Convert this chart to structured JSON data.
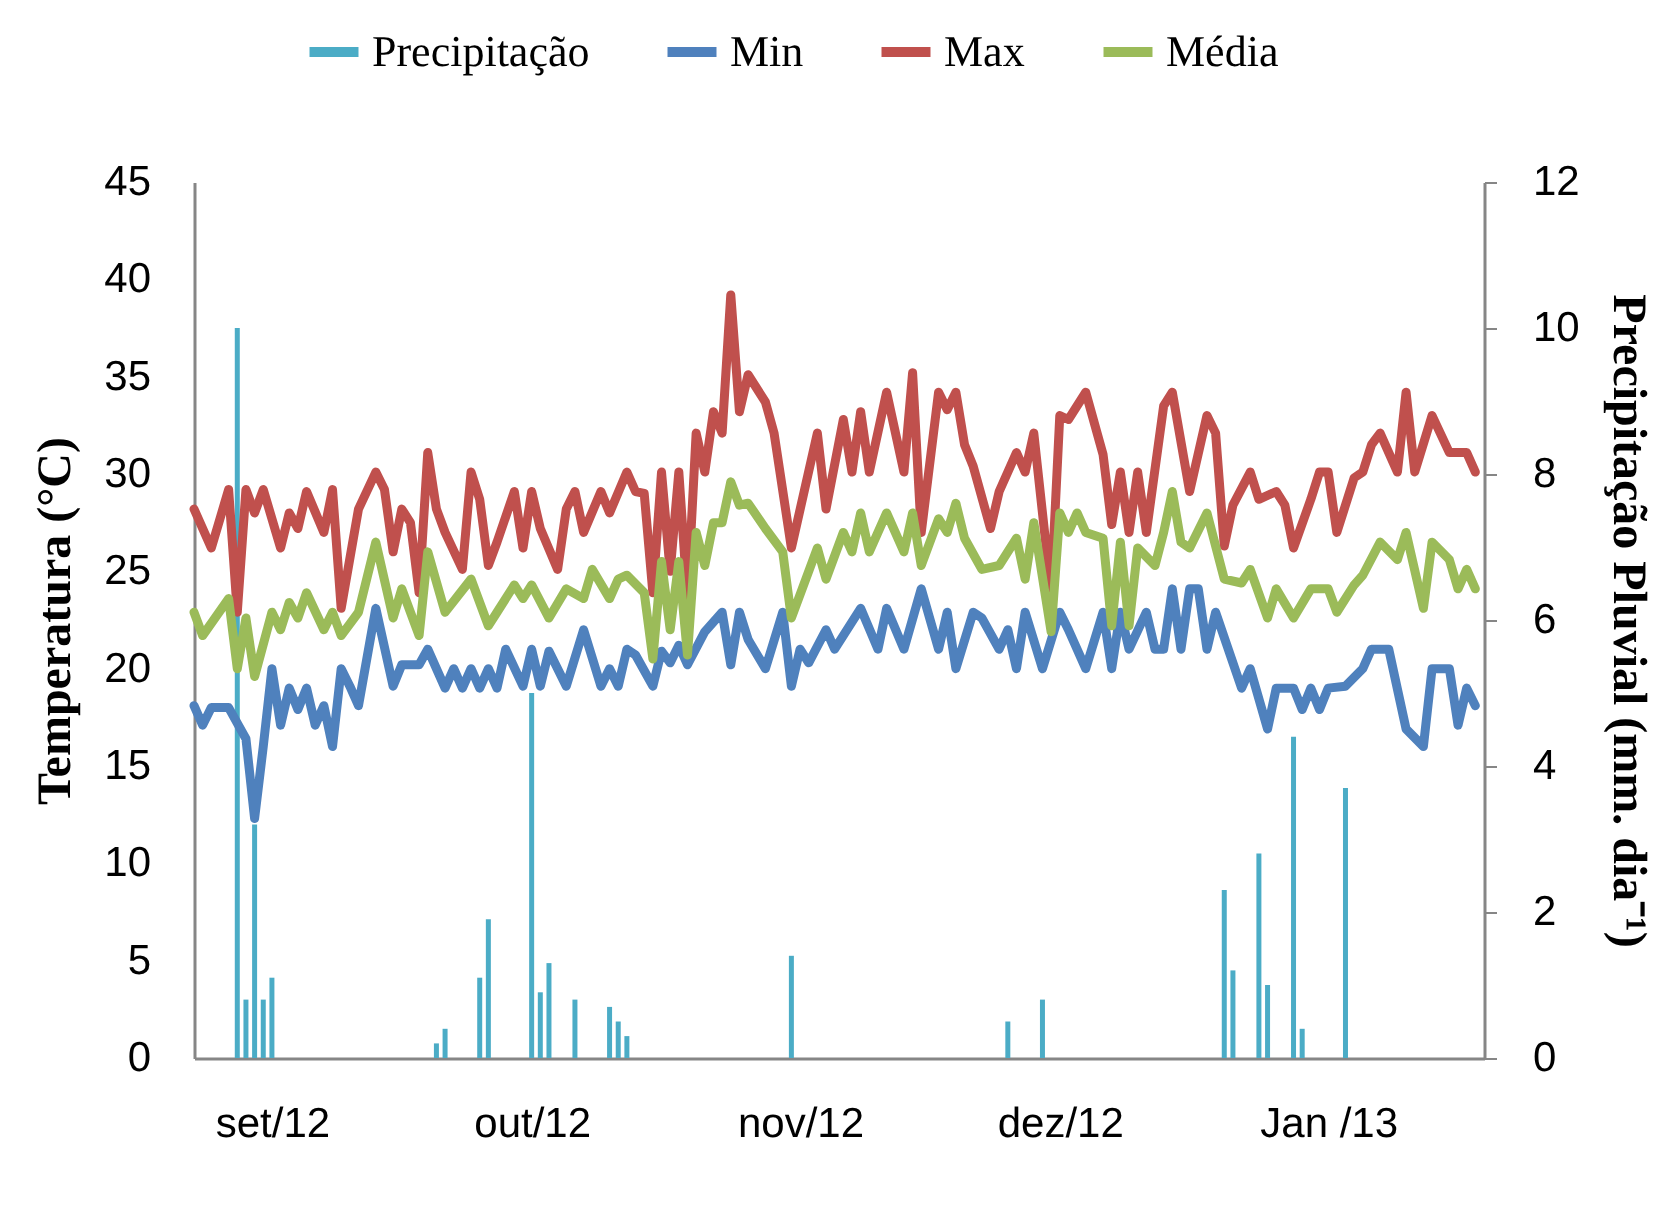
{
  "chart_data": {
    "type": "line",
    "ylabel": "Temperatura (°C)",
    "y2label": "Precipitação Pluvial (mm. dia⁻¹)",
    "legend": "top",
    "xlim": [
      "2012-08-23",
      "2013-01-19"
    ],
    "xticks": [
      {
        "value": "2012-09-01",
        "label": "set/12"
      },
      {
        "value": "2012-10-01",
        "label": "out/12"
      },
      {
        "value": "2012-11-01",
        "label": "nov/12"
      },
      {
        "value": "2012-12-01",
        "label": "dez/12"
      },
      {
        "value": "2013-01-01",
        "label": "Jan /13"
      }
    ],
    "ylim": [
      0,
      45
    ],
    "yticks": [
      0,
      5,
      10,
      15,
      20,
      25,
      30,
      35,
      40,
      45
    ],
    "y2lim": [
      0,
      12
    ],
    "y2ticks": [
      0,
      2,
      4,
      6,
      8,
      10,
      12
    ],
    "series": [
      {
        "name": "Precipitação",
        "type": "bar",
        "axis": "y2",
        "color": "#4bacc6",
        "x": [
          "2012-08-28",
          "2012-08-29",
          "2012-08-30",
          "2012-08-31",
          "2012-09-01",
          "2012-09-20",
          "2012-09-21",
          "2012-09-25",
          "2012-09-26",
          "2012-10-01",
          "2012-10-02",
          "2012-10-03",
          "2012-10-06",
          "2012-10-10",
          "2012-10-11",
          "2012-10-12",
          "2012-10-31",
          "2012-11-25",
          "2012-11-29",
          "2012-12-20",
          "2012-12-21",
          "2012-12-24",
          "2012-12-25",
          "2012-12-28",
          "2012-12-29",
          "2013-01-03"
        ],
        "values": [
          10.0,
          0.8,
          3.2,
          0.8,
          1.1,
          0.2,
          0.4,
          1.1,
          1.9,
          5.0,
          0.9,
          1.3,
          0.8,
          0.7,
          0.5,
          0.3,
          1.4,
          0.5,
          0.8,
          2.3,
          1.2,
          2.8,
          1.0,
          4.4,
          0.4,
          3.7
        ]
      },
      {
        "name": "Min",
        "color": "#4f81bd",
        "x": [
          "2012-08-23",
          "2012-08-24",
          "2012-08-25",
          "2012-08-27",
          "2012-08-29",
          "2012-08-30",
          "2012-08-31",
          "2012-09-01",
          "2012-09-02",
          "2012-09-03",
          "2012-09-04",
          "2012-09-05",
          "2012-09-06",
          "2012-09-07",
          "2012-09-08",
          "2012-09-09",
          "2012-09-10",
          "2012-09-11",
          "2012-09-13",
          "2012-09-15",
          "2012-09-16",
          "2012-09-18",
          "2012-09-19",
          "2012-09-21",
          "2012-09-22",
          "2012-09-23",
          "2012-09-24",
          "2012-09-25",
          "2012-09-26",
          "2012-09-27",
          "2012-09-28",
          "2012-09-30",
          "2012-10-01",
          "2012-10-02",
          "2012-10-03",
          "2012-10-05",
          "2012-10-07",
          "2012-10-09",
          "2012-10-10",
          "2012-10-11",
          "2012-10-12",
          "2012-10-13",
          "2012-10-15",
          "2012-10-16",
          "2012-10-17",
          "2012-10-18",
          "2012-10-19",
          "2012-10-21",
          "2012-10-23",
          "2012-10-24",
          "2012-10-25",
          "2012-10-26",
          "2012-10-28",
          "2012-10-30",
          "2012-10-31",
          "2012-11-01",
          "2012-11-02",
          "2012-11-04",
          "2012-11-05",
          "2012-11-08",
          "2012-11-10",
          "2012-11-11",
          "2012-11-13",
          "2012-11-15",
          "2012-11-17",
          "2012-11-18",
          "2012-11-19",
          "2012-11-21",
          "2012-11-22",
          "2012-11-24",
          "2012-11-25",
          "2012-11-26",
          "2012-11-27",
          "2012-11-29",
          "2012-12-01",
          "2012-12-02",
          "2012-12-04",
          "2012-12-06",
          "2012-12-07",
          "2012-12-08",
          "2012-12-09",
          "2012-12-11",
          "2012-12-12",
          "2012-12-13",
          "2012-12-14",
          "2012-12-15",
          "2012-12-16",
          "2012-12-17",
          "2012-12-18",
          "2012-12-19",
          "2012-12-22",
          "2012-12-23",
          "2012-12-25",
          "2012-12-26",
          "2012-12-28",
          "2012-12-29",
          "2012-12-30",
          "2012-12-31",
          "2013-01-01",
          "2013-01-03",
          "2013-01-05",
          "2013-01-06",
          "2013-01-08",
          "2013-01-10",
          "2013-01-12",
          "2013-01-13",
          "2013-01-15",
          "2013-01-16",
          "2013-01-17",
          "2013-01-18"
        ],
        "values": [
          18.1,
          17.1,
          18,
          18,
          16.4,
          12.3,
          16,
          20,
          17.1,
          19,
          17.9,
          19,
          17.1,
          18.1,
          16,
          20,
          19.1,
          18.1,
          23.1,
          19.1,
          20.2,
          20.2,
          21,
          19,
          20,
          19,
          20,
          19,
          20,
          19,
          21,
          19.1,
          21,
          19.1,
          20.9,
          19.1,
          22,
          19.1,
          20,
          19.1,
          21,
          20.7,
          19.1,
          20.9,
          20.3,
          21.2,
          20.2,
          21.9,
          22.9,
          20.2,
          22.9,
          21.5,
          20,
          22.9,
          19.1,
          21,
          20.3,
          22,
          21,
          23.1,
          21,
          23.1,
          21,
          24.1,
          21,
          22.9,
          20,
          22.9,
          22.6,
          21,
          22,
          20,
          22.9,
          20,
          22.9,
          22,
          20,
          22.9,
          20,
          22.9,
          21,
          22.9,
          21,
          21,
          24.1,
          21,
          24.1,
          24.1,
          21,
          22.9,
          19,
          20,
          16.9,
          19,
          19,
          17.9,
          19,
          17.9,
          19,
          19.1,
          20,
          21,
          21,
          16.9,
          16,
          20,
          20,
          17.1,
          19,
          18.1
        ]
      },
      {
        "name": "Max",
        "color": "#c0504d",
        "x": [
          "2012-08-23",
          "2012-08-25",
          "2012-08-27",
          "2012-08-28",
          "2012-08-29",
          "2012-08-30",
          "2012-08-31",
          "2012-09-02",
          "2012-09-03",
          "2012-09-04",
          "2012-09-05",
          "2012-09-07",
          "2012-09-08",
          "2012-09-09",
          "2012-09-11",
          "2012-09-13",
          "2012-09-14",
          "2012-09-15",
          "2012-09-16",
          "2012-09-17",
          "2012-09-18",
          "2012-09-19",
          "2012-09-20",
          "2012-09-21",
          "2012-09-23",
          "2012-09-24",
          "2012-09-25",
          "2012-09-26",
          "2012-09-27",
          "2012-09-29",
          "2012-09-30",
          "2012-10-01",
          "2012-10-02",
          "2012-10-04",
          "2012-10-05",
          "2012-10-06",
          "2012-10-07",
          "2012-10-09",
          "2012-10-10",
          "2012-10-12",
          "2012-10-13",
          "2012-10-14",
          "2012-10-15",
          "2012-10-16",
          "2012-10-17",
          "2012-10-18",
          "2012-10-19",
          "2012-10-20",
          "2012-10-21",
          "2012-10-22",
          "2012-10-23",
          "2012-10-24",
          "2012-10-25",
          "2012-10-26",
          "2012-10-28",
          "2012-10-29",
          "2012-10-31",
          "2012-11-03",
          "2012-11-04",
          "2012-11-06",
          "2012-11-07",
          "2012-11-08",
          "2012-11-09",
          "2012-11-11",
          "2012-11-13",
          "2012-11-14",
          "2012-11-15",
          "2012-11-17",
          "2012-11-18",
          "2012-11-19",
          "2012-11-20",
          "2012-11-21",
          "2012-11-23",
          "2012-11-24",
          "2012-11-26",
          "2012-11-27",
          "2012-11-28",
          "2012-11-30",
          "2012-12-01",
          "2012-12-02",
          "2012-12-04",
          "2012-12-06",
          "2012-12-07",
          "2012-12-08",
          "2012-12-09",
          "2012-12-10",
          "2012-12-11",
          "2012-12-13",
          "2012-12-14",
          "2012-12-16",
          "2012-12-18",
          "2012-12-19",
          "2012-12-20",
          "2012-12-21",
          "2012-12-23",
          "2012-12-24",
          "2012-12-26",
          "2012-12-27",
          "2012-12-28",
          "2012-12-30",
          "2012-12-31",
          "2013-01-01",
          "2013-01-02",
          "2013-01-04",
          "2013-01-05",
          "2013-01-06",
          "2013-01-07",
          "2013-01-09",
          "2013-01-10",
          "2013-01-11",
          "2013-01-13",
          "2013-01-15",
          "2013-01-17",
          "2013-01-18"
        ],
        "values": [
          28.2,
          26.2,
          29.2,
          22.9,
          29.2,
          28,
          29.2,
          26.2,
          28,
          27.2,
          29.1,
          27,
          29.2,
          23.1,
          28.2,
          30.1,
          29.2,
          26,
          28.2,
          27.5,
          23.9,
          31.1,
          28.2,
          27,
          25.1,
          30.1,
          28.7,
          25.3,
          26.5,
          29.1,
          26.2,
          29.1,
          27.2,
          25.1,
          28.2,
          29.1,
          27,
          29.1,
          28,
          30.1,
          29.1,
          29,
          23.9,
          30.1,
          25,
          30.1,
          23.6,
          32.1,
          30.1,
          33.2,
          32.1,
          39.2,
          33.2,
          35.1,
          33.7,
          32.1,
          26.2,
          32.1,
          28.2,
          32.8,
          30.1,
          33.2,
          30.1,
          34.2,
          30.1,
          35.2,
          27,
          34.2,
          33.3,
          34.2,
          31.5,
          30.4,
          27.2,
          29.1,
          31.1,
          30.1,
          32.1,
          23.9,
          33,
          32.8,
          34.2,
          31,
          27.4,
          30.1,
          27,
          30.1,
          27,
          33.5,
          34.2,
          29.1,
          33,
          32.1,
          26.3,
          28.4,
          30.1,
          28.7,
          29.1,
          28.4,
          26.2,
          28.7,
          30.1,
          30.1,
          27,
          29.8,
          30.1,
          31.5,
          32.1,
          30.1,
          34.2,
          30.1,
          33,
          31.1,
          31.1,
          30.1
        ]
      },
      {
        "name": "Média",
        "color": "#9bbb59",
        "x": [
          "2012-08-23",
          "2012-08-24",
          "2012-08-27",
          "2012-08-28",
          "2012-08-29",
          "2012-08-30",
          "2012-09-01",
          "2012-09-02",
          "2012-09-03",
          "2012-09-04",
          "2012-09-05",
          "2012-09-07",
          "2012-09-08",
          "2012-09-09",
          "2012-09-11",
          "2012-09-13",
          "2012-09-15",
          "2012-09-16",
          "2012-09-18",
          "2012-09-19",
          "2012-09-21",
          "2012-09-24",
          "2012-09-26",
          "2012-09-27",
          "2012-09-29",
          "2012-09-30",
          "2012-10-01",
          "2012-10-03",
          "2012-10-05",
          "2012-10-07",
          "2012-10-08",
          "2012-10-10",
          "2012-10-11",
          "2012-10-12",
          "2012-10-14",
          "2012-10-15",
          "2012-10-16",
          "2012-10-17",
          "2012-10-18",
          "2012-10-19",
          "2012-10-20",
          "2012-10-21",
          "2012-10-22",
          "2012-10-23",
          "2012-10-24",
          "2012-10-25",
          "2012-10-26",
          "2012-10-28",
          "2012-10-30",
          "2012-10-31",
          "2012-11-03",
          "2012-11-04",
          "2012-11-06",
          "2012-11-07",
          "2012-11-08",
          "2012-11-09",
          "2012-11-11",
          "2012-11-13",
          "2012-11-14",
          "2012-11-15",
          "2012-11-17",
          "2012-11-18",
          "2012-11-19",
          "2012-11-20",
          "2012-11-22",
          "2012-11-24",
          "2012-11-26",
          "2012-11-27",
          "2012-11-28",
          "2012-11-30",
          "2012-12-01",
          "2012-12-02",
          "2012-12-03",
          "2012-12-04",
          "2012-12-06",
          "2012-12-07",
          "2012-12-08",
          "2012-12-09",
          "2012-12-10",
          "2012-12-12",
          "2012-12-13",
          "2012-12-14",
          "2012-12-15",
          "2012-12-16",
          "2012-12-18",
          "2012-12-20",
          "2012-12-22",
          "2012-12-23",
          "2012-12-25",
          "2012-12-26",
          "2012-12-28",
          "2012-12-30",
          "2013-01-01",
          "2013-01-02",
          "2013-01-04",
          "2013-01-05",
          "2013-01-07",
          "2013-01-09",
          "2013-01-10",
          "2013-01-12",
          "2013-01-13",
          "2013-01-15",
          "2013-01-16",
          "2013-01-17",
          "2013-01-18"
        ],
        "values": [
          22.9,
          21.7,
          23.6,
          20,
          22.6,
          19.6,
          22.9,
          22,
          23.4,
          22.6,
          23.9,
          22,
          22.9,
          21.7,
          22.9,
          26.5,
          22.6,
          24.1,
          21.7,
          26,
          22.9,
          24.6,
          22.2,
          22.9,
          24.3,
          23.6,
          24.3,
          22.6,
          24.1,
          23.6,
          25.1,
          23.6,
          24.6,
          24.8,
          23.9,
          20.5,
          25.5,
          22,
          25.5,
          20.7,
          27,
          25.3,
          27.5,
          27.5,
          29.6,
          28.4,
          28.5,
          27.2,
          26,
          22.6,
          26.2,
          24.6,
          27,
          26,
          28,
          26,
          28,
          26,
          28,
          25.3,
          27.7,
          27,
          28.5,
          26.7,
          25.1,
          25.3,
          26.7,
          24.6,
          27.5,
          21.9,
          28,
          27,
          28,
          27,
          26.7,
          22.2,
          26.5,
          22.2,
          26.2,
          25.3,
          27,
          29.1,
          26.5,
          26.2,
          28,
          24.6,
          24.4,
          25.1,
          22.6,
          24.1,
          22.6,
          24.1,
          24.1,
          22.9,
          24.3,
          24.8,
          26.5,
          25.6,
          27,
          23.1,
          26.5,
          25.6,
          24.1,
          25.1,
          24.1
        ]
      }
    ]
  }
}
